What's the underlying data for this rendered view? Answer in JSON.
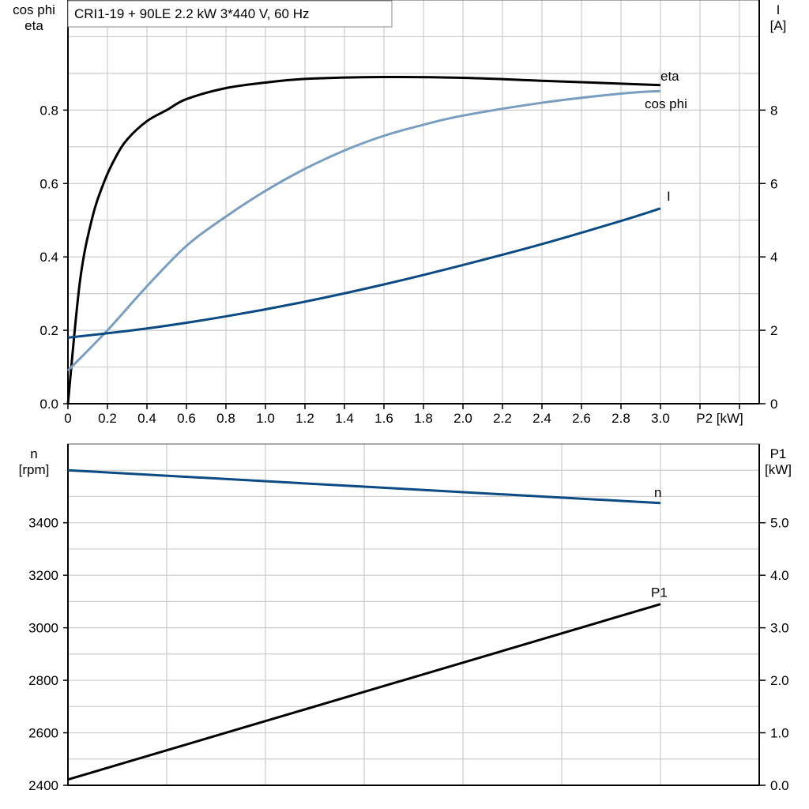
{
  "title": "CRI1-19 + 90LE   2.2 kW   3*440 V, 60 Hz",
  "colors": {
    "eta": "#000000",
    "cos_phi": "#7a9ebf",
    "I": "#0b4a82",
    "n": "#0b4a82",
    "P1": "#000000",
    "grid": "#cccccc"
  },
  "chart_data": [
    {
      "type": "line",
      "xlabel": "P2 [kW]",
      "ylabel_left": [
        "cos phi",
        "eta"
      ],
      "ylabel_right": [
        "I",
        "[A]"
      ],
      "xlim": [
        0,
        3.5
      ],
      "ylim_left": [
        0,
        1.1
      ],
      "ylim_right": [
        0,
        11
      ],
      "x_ticks": [
        "0",
        "0.2",
        "0.4",
        "0.6",
        "0.8",
        "1.0",
        "1.2",
        "1.4",
        "1.6",
        "1.8",
        "2.0",
        "2.2",
        "2.4",
        "2.6",
        "2.8",
        "3.0"
      ],
      "y_left_ticks": [
        "0.0",
        "0.2",
        "0.4",
        "0.6",
        "0.8"
      ],
      "y_right_ticks": [
        "0",
        "2",
        "4",
        "6",
        "8"
      ],
      "grid": true,
      "series": [
        {
          "name": "eta",
          "axis": "left",
          "x": [
            0,
            0.06,
            0.12,
            0.18,
            0.24,
            0.3,
            0.4,
            0.5,
            0.6,
            0.8,
            1.0,
            1.2,
            1.6,
            2.0,
            2.4,
            3.0
          ],
          "y": [
            0,
            0.33,
            0.5,
            0.6,
            0.67,
            0.72,
            0.77,
            0.8,
            0.83,
            0.86,
            0.875,
            0.885,
            0.89,
            0.888,
            0.88,
            0.868
          ]
        },
        {
          "name": "cos phi",
          "axis": "left",
          "x": [
            0,
            0.2,
            0.4,
            0.6,
            0.8,
            1.0,
            1.2,
            1.4,
            1.6,
            1.8,
            2.0,
            2.4,
            2.8,
            3.0
          ],
          "y": [
            0.09,
            0.2,
            0.32,
            0.43,
            0.51,
            0.58,
            0.64,
            0.69,
            0.73,
            0.76,
            0.785,
            0.82,
            0.845,
            0.852
          ]
        },
        {
          "name": "I",
          "axis": "right",
          "x": [
            0,
            0.4,
            0.8,
            1.2,
            1.6,
            2.0,
            2.4,
            2.8,
            3.0
          ],
          "y": [
            1.8,
            2.05,
            2.38,
            2.78,
            3.25,
            3.78,
            4.35,
            4.98,
            5.32
          ]
        }
      ]
    },
    {
      "type": "line",
      "ylabel_left": [
        "n",
        "[rpm]"
      ],
      "ylabel_right": [
        "P1",
        "[kW]"
      ],
      "xlim": [
        0,
        3.5
      ],
      "ylim_left": [
        2400,
        3700
      ],
      "ylim_right": [
        0,
        6.5
      ],
      "y_left_ticks": [
        "2400",
        "2600",
        "2800",
        "3000",
        "3200",
        "3400"
      ],
      "y_right_ticks": [
        "0.0",
        "1.0",
        "2.0",
        "3.0",
        "4.0",
        "5.0"
      ],
      "grid": true,
      "series": [
        {
          "name": "n",
          "axis": "left",
          "x": [
            0,
            3.0
          ],
          "y": [
            3600,
            3475
          ]
        },
        {
          "name": "P1",
          "axis": "right",
          "x": [
            0,
            3.0
          ],
          "y": [
            0.11,
            3.45
          ]
        }
      ]
    }
  ]
}
